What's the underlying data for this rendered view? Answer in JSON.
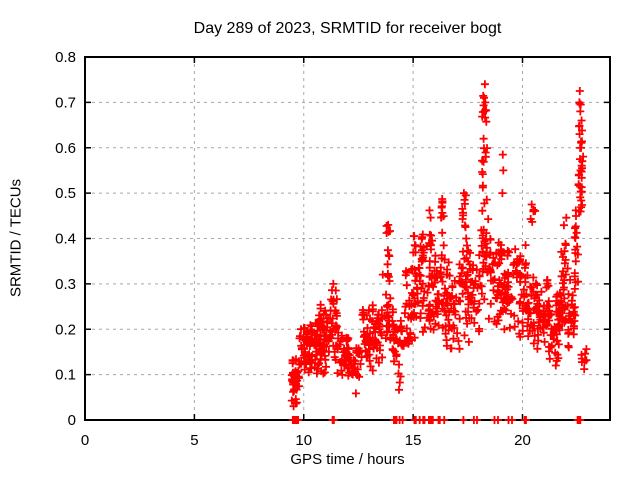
{
  "chart": {
    "title": "Day 289 of 2023, SRMTID for receiver bogt",
    "xlabel": "GPS time / hours",
    "ylabel": "SRMTID / TECUs"
  },
  "chart_data": {
    "type": "scatter",
    "title": "Day 289 of 2023, SRMTID for receiver bogt",
    "xlabel": "GPS time / hours",
    "ylabel": "SRMTID / TECUs",
    "xlim": [
      0,
      24
    ],
    "ylim": [
      0,
      0.8
    ],
    "x_ticks": [
      0,
      5,
      10,
      15,
      20
    ],
    "y_ticks": [
      0,
      0.1,
      0.2,
      0.3,
      0.4,
      0.5,
      0.6,
      0.7,
      0.8
    ],
    "grid": true,
    "legend": "none",
    "marker": "plus",
    "marker_color": "#ff0000",
    "grid_color": "#a8a8a8",
    "axis_color": "#000000",
    "seed": 289,
    "series_name": "SRMTID",
    "data_start_hour": 9.45,
    "data_end_hour": 22.95,
    "bands": [
      [
        9.45,
        9.8,
        0.02,
        0.16,
        38,
        "tri"
      ],
      [
        9.78,
        10.3,
        0.07,
        0.22,
        46,
        "tri"
      ],
      [
        10.3,
        10.75,
        0.09,
        0.24,
        40,
        "tri"
      ],
      [
        10.75,
        11.2,
        0.1,
        0.27,
        42,
        "tri"
      ],
      [
        11.2,
        11.52,
        0.1,
        0.3,
        28,
        "tri"
      ],
      [
        11.52,
        12.1,
        0.08,
        0.21,
        38,
        "tri"
      ],
      [
        12.1,
        12.65,
        0.05,
        0.18,
        28,
        "tri"
      ],
      [
        12.65,
        13.6,
        0.1,
        0.27,
        68,
        "tri"
      ],
      [
        13.6,
        14.1,
        0.12,
        0.34,
        30,
        "tri"
      ],
      [
        14.1,
        14.65,
        0.06,
        0.28,
        32,
        "tri"
      ],
      [
        14.65,
        15.25,
        0.13,
        0.38,
        40,
        "tri"
      ],
      [
        15.25,
        15.9,
        0.17,
        0.42,
        46,
        "tri"
      ],
      [
        15.9,
        16.5,
        0.15,
        0.4,
        42,
        "tri"
      ],
      [
        16.5,
        17.15,
        0.13,
        0.36,
        46,
        "tri"
      ],
      [
        17.15,
        17.5,
        0.18,
        0.42,
        24,
        "tri"
      ],
      [
        17.5,
        18.05,
        0.15,
        0.4,
        40,
        "tri"
      ],
      [
        18.05,
        18.45,
        0.25,
        0.46,
        26,
        "tri"
      ],
      [
        18.45,
        19.05,
        0.2,
        0.45,
        46,
        "tri"
      ],
      [
        19.05,
        19.75,
        0.18,
        0.4,
        46,
        "tri"
      ],
      [
        19.75,
        20.25,
        0.15,
        0.4,
        38,
        "tri"
      ],
      [
        20.25,
        20.7,
        0.12,
        0.35,
        30,
        "tri"
      ],
      [
        20.7,
        21.2,
        0.13,
        0.33,
        34,
        "tri"
      ],
      [
        21.2,
        21.7,
        0.1,
        0.3,
        46,
        "tri"
      ],
      [
        21.7,
        22.1,
        0.14,
        0.4,
        32,
        "tri"
      ],
      [
        22.1,
        22.42,
        0.13,
        0.35,
        24,
        "tri"
      ],
      [
        22.35,
        22.58,
        0.28,
        0.48,
        16,
        "tri"
      ],
      [
        22.6,
        22.95,
        0.1,
        0.17,
        8,
        "tri"
      ],
      [
        13.78,
        13.96,
        0.3,
        0.43,
        10,
        "uni"
      ],
      [
        15.0,
        15.14,
        0.32,
        0.41,
        7,
        "uni"
      ],
      [
        15.38,
        15.52,
        0.35,
        0.44,
        6,
        "uni"
      ],
      [
        15.66,
        15.84,
        0.37,
        0.46,
        8,
        "uni"
      ],
      [
        16.24,
        16.42,
        0.38,
        0.49,
        9,
        "uni"
      ],
      [
        17.24,
        17.42,
        0.4,
        0.5,
        8,
        "uni"
      ],
      [
        18.15,
        18.38,
        0.45,
        0.74,
        20,
        "uni"
      ],
      [
        20.35,
        20.58,
        0.43,
        0.48,
        4,
        "uni"
      ],
      [
        21.85,
        22.02,
        0.32,
        0.45,
        7,
        "uni"
      ],
      [
        22.55,
        22.78,
        0.45,
        0.72,
        28,
        "uni"
      ]
    ],
    "points": [
      [
        18.28,
        0.74
      ],
      [
        18.24,
        0.71
      ],
      [
        18.3,
        0.7
      ],
      [
        18.26,
        0.68
      ],
      [
        18.22,
        0.62
      ],
      [
        18.32,
        0.58
      ],
      [
        22.62,
        0.725
      ],
      [
        22.6,
        0.7
      ],
      [
        22.66,
        0.695
      ],
      [
        22.64,
        0.68
      ],
      [
        22.7,
        0.66
      ],
      [
        22.61,
        0.63
      ],
      [
        22.68,
        0.6
      ],
      [
        22.63,
        0.575
      ],
      [
        22.65,
        0.55
      ],
      [
        19.1,
        0.585
      ],
      [
        19.12,
        0.55
      ],
      [
        19.08,
        0.5
      ],
      [
        20.42,
        0.475
      ],
      [
        20.5,
        0.46
      ],
      [
        17.32,
        0.5
      ],
      [
        17.35,
        0.485
      ],
      [
        16.33,
        0.487
      ],
      [
        16.3,
        0.468
      ],
      [
        15.75,
        0.462
      ],
      [
        15.05,
        0.405
      ],
      [
        13.86,
        0.43
      ],
      [
        13.88,
        0.415
      ],
      [
        11.35,
        0.3
      ]
    ],
    "zero_marks": [
      9.5,
      9.55,
      9.62,
      9.68,
      9.74,
      11.32,
      11.38,
      14.12,
      14.18,
      14.24,
      14.38,
      14.52,
      15.06,
      15.12,
      15.3,
      15.46,
      15.52,
      15.72,
      15.78,
      15.84,
      15.9,
      16.16,
      16.22,
      16.42,
      17.3,
      17.78,
      17.92,
      18.72,
      18.88,
      19.36,
      19.52,
      20.1,
      20.16,
      22.52,
      22.58,
      22.64
    ]
  }
}
